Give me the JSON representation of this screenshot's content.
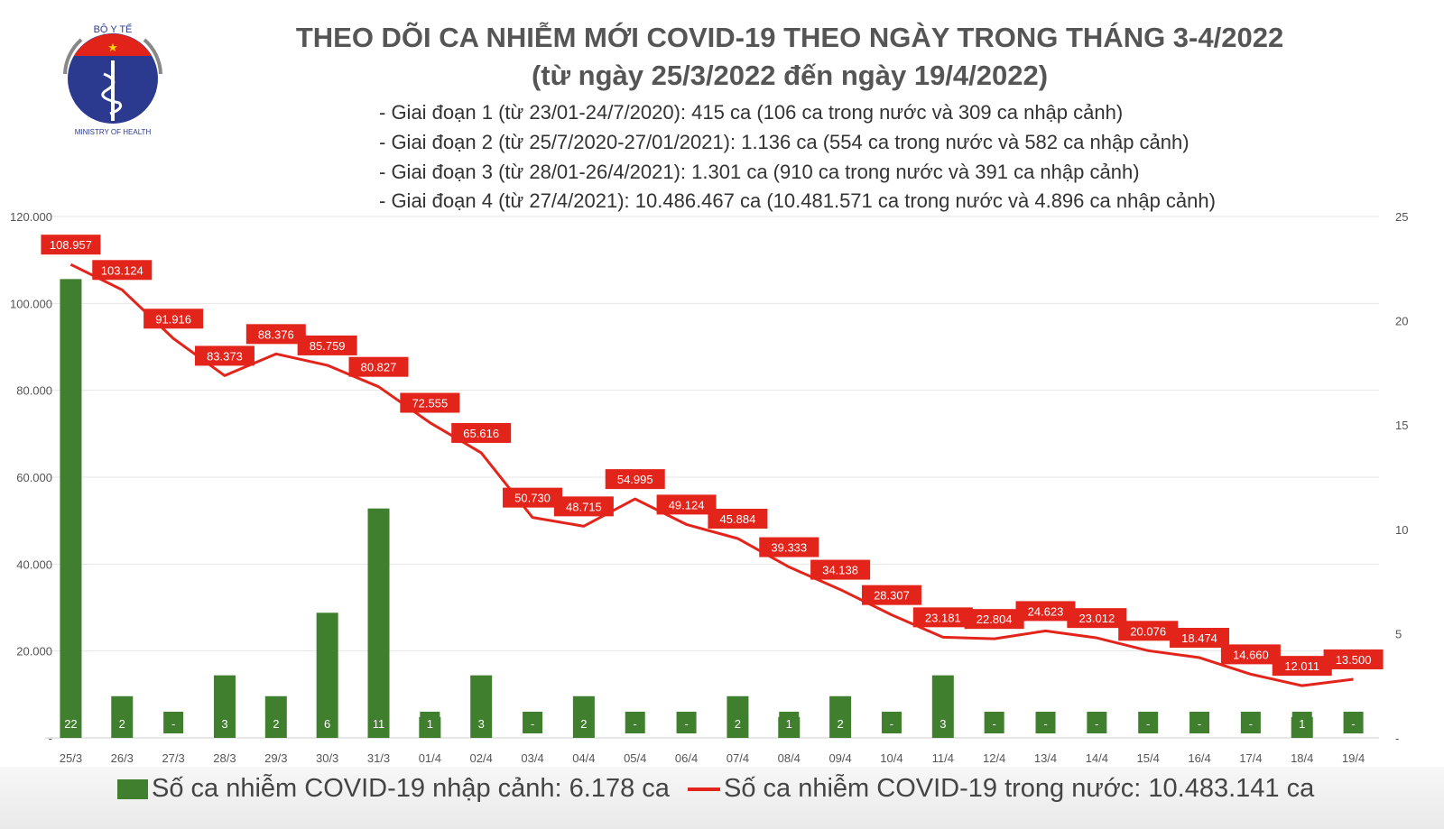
{
  "logo": {
    "top_text": "BỘ Y TẾ",
    "bottom_text": "MINISTRY OF HEALTH"
  },
  "title": "THEO DÕI CA NHIỄM MỚI COVID-19 THEO NGÀY TRONG THÁNG 3-4/2022",
  "subtitle": "(từ ngày 25/3/2022 đến ngày 19/4/2022)",
  "notes": [
    "- Giai đoạn 1 (từ 23/01-24/7/2020): 415 ca (106 ca trong nước và 309 ca nhập cảnh)",
    "- Giai đoạn 2 (từ 25/7/2020-27/01/2021): 1.136 ca (554 ca trong nước và 582 ca nhập cảnh)",
    "- Giai đoạn 3 (từ 28/01-26/4/2021): 1.301 ca (910 ca trong nước và 391 ca nhập cảnh)",
    "- Giai đoạn 4 (từ 27/4/2021): 10.486.467 ca (10.481.571 ca trong nước và 4.896 ca nhập cảnh)"
  ],
  "chart_data": {
    "type": "bar+line",
    "categories": [
      "25/3",
      "26/3",
      "27/3",
      "28/3",
      "29/3",
      "30/3",
      "31/3",
      "01/4",
      "02/4",
      "03/4",
      "04/4",
      "05/4",
      "06/4",
      "07/4",
      "08/4",
      "09/4",
      "10/4",
      "11/4",
      "12/4",
      "13/4",
      "14/4",
      "15/4",
      "16/4",
      "17/4",
      "18/4",
      "19/4"
    ],
    "series": [
      {
        "name": "Số ca nhiễm COVID-19 nhập cảnh: 6.178 ca",
        "type": "bar",
        "axis": "right",
        "color": "#3f7f2e",
        "values": [
          22,
          2,
          0,
          3,
          2,
          6,
          11,
          1,
          3,
          0,
          2,
          0,
          0,
          2,
          1,
          2,
          0,
          3,
          0,
          0,
          0,
          0,
          0,
          0,
          1,
          0
        ],
        "labels": [
          "22",
          "2",
          "-",
          "3",
          "2",
          "6",
          "11",
          "1",
          "3",
          "-",
          "2",
          "-",
          "-",
          "2",
          "1",
          "2",
          "-",
          "3",
          "-",
          "-",
          "-",
          "-",
          "-",
          "-",
          "1",
          "-"
        ]
      },
      {
        "name": "Số ca nhiễm COVID-19 trong nước: 10.483.141 ca",
        "type": "line",
        "axis": "left",
        "color": "#e3241b",
        "values": [
          108957,
          103124,
          91916,
          83373,
          88376,
          85759,
          80827,
          72555,
          65616,
          50730,
          48715,
          54995,
          49124,
          45884,
          39333,
          34138,
          28307,
          23181,
          22804,
          24623,
          23012,
          20076,
          18474,
          14660,
          12011,
          13500
        ],
        "labels": [
          "108.957",
          "103.124",
          "91.916",
          "83.373",
          "88.376",
          "85.759",
          "80.827",
          "72.555",
          "65.616",
          "50.730",
          "48.715",
          "54.995",
          "49.124",
          "45.884",
          "39.333",
          "34.138",
          "28.307",
          "23.181",
          "22.804",
          "24.623",
          "23.012",
          "20.076",
          "18.474",
          "14.660",
          "12.011",
          "13.500"
        ]
      }
    ],
    "y_left": {
      "range": [
        0,
        120000
      ],
      "ticks": [
        "-",
        "20.000",
        "40.000",
        "60.000",
        "80.000",
        "100.000",
        "120.000"
      ]
    },
    "y_right": {
      "range": [
        0,
        25
      ],
      "ticks": [
        "-",
        "5",
        "10",
        "15",
        "20",
        "25"
      ]
    },
    "grid": true,
    "legend": "bottom"
  }
}
